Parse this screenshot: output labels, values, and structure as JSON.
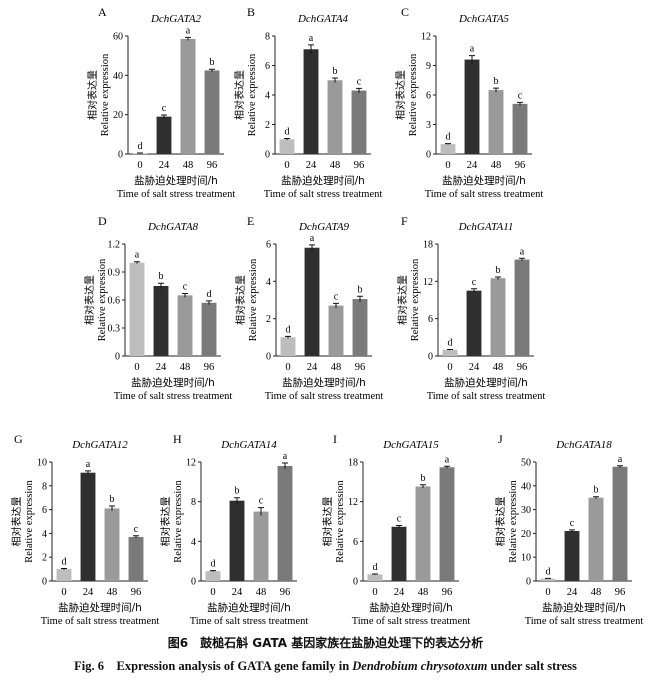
{
  "shared": {
    "ylabel_cn": "相对表达量",
    "ylabel_en": "Relative expression",
    "xlabel_cn": "盐胁迫处理时间/h",
    "xlabel_en": "Time of salt stress treatment"
  },
  "chart_data": [
    {
      "type": "bar",
      "panel": "A",
      "title": "DchGATA2",
      "categories": [
        "0",
        "24",
        "48",
        "96"
      ],
      "values": [
        0.3,
        19,
        58.5,
        42.5
      ],
      "errors": [
        0.2,
        0.8,
        0.8,
        0.6
      ],
      "letters": [
        "d",
        "c",
        "a",
        "b"
      ],
      "ylim": [
        0,
        60
      ],
      "yticks": [
        0,
        20,
        40,
        60
      ],
      "ylabel": "相对表达量 / Relative expression",
      "xlabel": "盐胁迫处理时间/h / Time of salt stress treatment"
    },
    {
      "type": "bar",
      "panel": "B",
      "title": "DchGATA4",
      "categories": [
        "0",
        "24",
        "48",
        "96"
      ],
      "values": [
        1,
        7.1,
        5,
        4.3
      ],
      "errors": [
        0.05,
        0.3,
        0.15,
        0.15
      ],
      "letters": [
        "d",
        "a",
        "b",
        "c"
      ],
      "ylim": [
        0,
        8
      ],
      "yticks": [
        0,
        2,
        4,
        6,
        8
      ],
      "ylabel": "相对表达量 / Relative expression",
      "xlabel": "盐胁迫处理时间/h / Time of salt stress treatment"
    },
    {
      "type": "bar",
      "panel": "C",
      "title": "DchGATA5",
      "categories": [
        "0",
        "24",
        "48",
        "96"
      ],
      "values": [
        1,
        9.6,
        6.5,
        5.1
      ],
      "errors": [
        0.05,
        0.4,
        0.2,
        0.15
      ],
      "letters": [
        "d",
        "a",
        "b",
        "c"
      ],
      "ylim": [
        0,
        12
      ],
      "yticks": [
        0,
        3,
        6,
        9,
        12
      ],
      "ylabel": "相对表达量 / Relative expression",
      "xlabel": "盐胁迫处理时间/h / Time of salt stress treatment"
    },
    {
      "type": "bar",
      "panel": "D",
      "title": "DchGATA8",
      "categories": [
        "0",
        "24",
        "48",
        "96"
      ],
      "values": [
        1,
        0.75,
        0.65,
        0.57
      ],
      "errors": [
        0.01,
        0.03,
        0.02,
        0.02
      ],
      "letters": [
        "a",
        "b",
        "c",
        "d"
      ],
      "ylim": [
        0,
        1.2
      ],
      "yticks": [
        0,
        0.3,
        0.6,
        0.9,
        1.2
      ],
      "ylabel": "相对表达量 / Relative expression",
      "xlabel": "盐胁迫处理时间/h / Time of salt stress treatment"
    },
    {
      "type": "bar",
      "panel": "E",
      "title": "DchGATA9",
      "categories": [
        "0",
        "24",
        "48",
        "96"
      ],
      "values": [
        1,
        5.8,
        2.7,
        3.05
      ],
      "errors": [
        0.05,
        0.15,
        0.12,
        0.15
      ],
      "letters": [
        "d",
        "a",
        "c",
        "b"
      ],
      "ylim": [
        0,
        6
      ],
      "yticks": [
        0,
        2,
        4,
        6
      ],
      "ylabel": "相对表达量 / Relative expression",
      "xlabel": "盐胁迫处理时间/h / Time of salt stress treatment"
    },
    {
      "type": "bar",
      "panel": "F",
      "title": "DchGATA11",
      "categories": [
        "0",
        "24",
        "48",
        "96"
      ],
      "values": [
        1,
        10.5,
        12.5,
        15.5
      ],
      "errors": [
        0.05,
        0.3,
        0.2,
        0.2
      ],
      "letters": [
        "d",
        "c",
        "b",
        "a"
      ],
      "ylim": [
        0,
        18
      ],
      "yticks": [
        0,
        6,
        12,
        18
      ],
      "ylabel": "相对表达量 / Relative expression",
      "xlabel": "盐胁迫处理时间/h / Time of salt stress treatment"
    },
    {
      "type": "bar",
      "panel": "G",
      "title": "DchGATA12",
      "categories": [
        "0",
        "24",
        "48",
        "96"
      ],
      "values": [
        1,
        9.1,
        6.1,
        3.7
      ],
      "errors": [
        0.05,
        0.15,
        0.2,
        0.1
      ],
      "letters": [
        "d",
        "a",
        "b",
        "c"
      ],
      "ylim": [
        0,
        10
      ],
      "yticks": [
        0,
        2,
        4,
        6,
        8,
        10
      ],
      "ylabel": "相对表达量 / Relative expression",
      "xlabel": "盐胁迫处理时间/h / Time of salt stress treatment"
    },
    {
      "type": "bar",
      "panel": "H",
      "title": "DchGATA14",
      "categories": [
        "0",
        "24",
        "48",
        "96"
      ],
      "values": [
        1,
        8.1,
        7,
        11.6
      ],
      "errors": [
        0.05,
        0.3,
        0.4,
        0.3
      ],
      "letters": [
        "d",
        "b",
        "c",
        "a"
      ],
      "ylim": [
        0,
        12
      ],
      "yticks": [
        0,
        4,
        8,
        12
      ],
      "ylabel": "相对表达量 / Relative expression",
      "xlabel": "盐胁迫处理时间/h / Time of salt stress treatment"
    },
    {
      "type": "bar",
      "panel": "I",
      "title": "DchGATA15",
      "categories": [
        "0",
        "24",
        "48",
        "96"
      ],
      "values": [
        1,
        8.2,
        14.3,
        17.2
      ],
      "errors": [
        0.05,
        0.2,
        0.25,
        0.15
      ],
      "letters": [
        "d",
        "c",
        "b",
        "a"
      ],
      "ylim": [
        0,
        18
      ],
      "yticks": [
        0,
        6,
        12,
        18
      ],
      "ylabel": "相对表达量 / Relative expression",
      "xlabel": "盐胁迫处理时间/h / Time of salt stress treatment"
    },
    {
      "type": "bar",
      "panel": "J",
      "title": "DchGATA18",
      "categories": [
        "0",
        "24",
        "48",
        "96"
      ],
      "values": [
        1,
        21,
        35,
        48
      ],
      "errors": [
        0.1,
        0.5,
        0.4,
        0.4
      ],
      "letters": [
        "d",
        "c",
        "b",
        "a"
      ],
      "ylim": [
        0,
        50
      ],
      "yticks": [
        0,
        10,
        20,
        30,
        40,
        50
      ],
      "ylabel": "相对表达量 / Relative expression",
      "xlabel": "盐胁迫处理时间/h / Time of salt stress treatment"
    }
  ],
  "bar_colors": [
    "#bdbdbd",
    "#2f2f2f",
    "#9a9a9a",
    "#7a7a7a"
  ],
  "caption": {
    "cn": "图6　鼓槌石斛 GATA 基因家族在盐胁迫处理下的表达分析",
    "en_prefix": "Fig. 6　Expression analysis of GATA gene family in ",
    "en_species": "Dendrobium chrysotoxum",
    "en_suffix": " under salt stress"
  }
}
